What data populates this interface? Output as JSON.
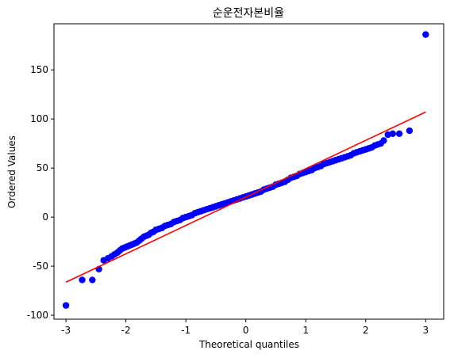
{
  "chart_data": {
    "type": "scatter",
    "title": "순운전자본비율",
    "xlabel": "Theoretical quantiles",
    "ylabel": "Ordered Values",
    "xlim": [
      -3.2,
      3.3
    ],
    "ylim": [
      -104,
      197
    ],
    "xticks": [
      -3,
      -2,
      -1,
      0,
      1,
      2,
      3
    ],
    "xtick_labels": [
      "-3",
      "-2",
      "-1",
      "0",
      "1",
      "2",
      "3"
    ],
    "yticks": [
      -100,
      -50,
      0,
      50,
      100,
      150
    ],
    "ytick_labels": [
      "-100",
      "-50",
      "0",
      "50",
      "100",
      "150"
    ],
    "grid": false,
    "series": [
      {
        "kind": "points",
        "color": "#0000ff",
        "x": [
          -3.0,
          -2.73,
          -2.56,
          -2.45,
          -2.37,
          -2.3,
          -2.24,
          -2.19,
          -2.14,
          -2.1,
          -2.06,
          -2.02,
          -1.98,
          -1.94,
          -1.9,
          -1.86,
          -1.82,
          -1.78,
          -1.74,
          -1.7,
          -1.66,
          -1.62,
          -1.58,
          -1.54,
          -1.5,
          -1.45,
          -1.4,
          -1.35,
          -1.3,
          -1.25,
          -1.2,
          -1.15,
          -1.1,
          -1.05,
          -1.0,
          -0.95,
          -0.9,
          -0.85,
          -0.8,
          -0.75,
          -0.7,
          -0.65,
          -0.6,
          -0.55,
          -0.5,
          -0.45,
          -0.4,
          -0.35,
          -0.3,
          -0.25,
          -0.2,
          -0.15,
          -0.1,
          -0.05,
          0.0,
          0.05,
          0.1,
          0.15,
          0.2,
          0.25,
          0.3,
          0.35,
          0.4,
          0.45,
          0.5,
          0.55,
          0.6,
          0.65,
          0.7,
          0.75,
          0.8,
          0.85,
          0.9,
          0.95,
          1.0,
          1.05,
          1.1,
          1.15,
          1.2,
          1.25,
          1.3,
          1.35,
          1.4,
          1.45,
          1.5,
          1.55,
          1.6,
          1.65,
          1.7,
          1.75,
          1.8,
          1.85,
          1.9,
          1.95,
          2.0,
          2.05,
          2.1,
          2.15,
          2.2,
          2.25,
          2.3,
          2.37,
          2.45,
          2.56,
          2.73,
          3.0
        ],
        "y": [
          -90,
          -64,
          -64,
          -53,
          -44,
          -42,
          -40,
          -38,
          -36,
          -34,
          -32,
          -31,
          -30,
          -29,
          -28,
          -27,
          -26,
          -24,
          -22,
          -20,
          -19,
          -18,
          -16,
          -15,
          -13,
          -12,
          -11,
          -9,
          -8,
          -7,
          -5,
          -4,
          -3,
          -1,
          0,
          1,
          2,
          4,
          5,
          6,
          7,
          8,
          9,
          10,
          11,
          12,
          13,
          14,
          15,
          16,
          17,
          18,
          19,
          20,
          21,
          22,
          23,
          24,
          25,
          26,
          28,
          29,
          30,
          31,
          33,
          34,
          35,
          36,
          38,
          40,
          41,
          42,
          44,
          45,
          46,
          47,
          48,
          50,
          51,
          52,
          54,
          55,
          56,
          57,
          58,
          59,
          60,
          61,
          62,
          63,
          65,
          66,
          67,
          68,
          69,
          70,
          71,
          73,
          74,
          75,
          78,
          84,
          85,
          85,
          88,
          186
        ]
      },
      {
        "kind": "fit-line",
        "color": "#ff0000",
        "x": [
          -3.0,
          3.0
        ],
        "y": [
          -66.3,
          107.1
        ]
      }
    ]
  }
}
